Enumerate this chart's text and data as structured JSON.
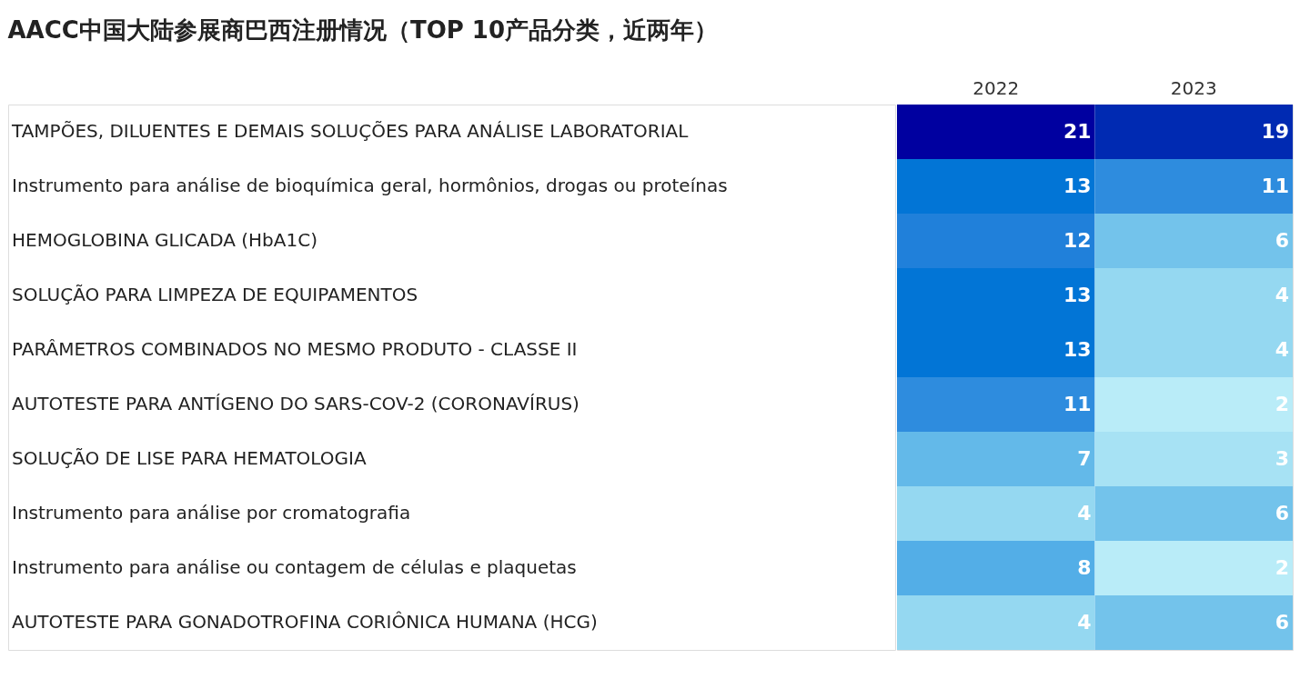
{
  "chart_data": {
    "type": "heatmap",
    "title": "AACC中国大陆参展商巴西注册情况（TOP 10产品分类，近两年）",
    "categories": [
      "2022",
      "2023"
    ],
    "y_categories": [
      "TAMPÕES, DILUENTES E DEMAIS SOLUÇÕES PARA ANÁLISE LABORATORIAL",
      "Instrumento para análise de bioquímica geral, hormônios, drogas ou proteínas",
      "HEMOGLOBINA GLICADA (HbA1C)",
      "SOLUÇÃO PARA LIMPEZA DE EQUIPAMENTOS",
      "PARÂMETROS COMBINADOS NO MESMO PRODUTO - CLASSE II",
      "AUTOTESTE PARA ANTÍGENO DO SARS-COV-2 (CORONAVÍRUS)",
      "SOLUÇÃO DE LISE PARA HEMATOLOGIA",
      "Instrumento para análise por cromatografia",
      "Instrumento para análise ou contagem de células e plaquetas",
      "AUTOTESTE PARA GONADOTROFINA CORIÔNICA HUMANA (HCG)"
    ],
    "cells": [
      [
        21,
        19
      ],
      [
        13,
        11
      ],
      [
        12,
        6
      ],
      [
        13,
        4
      ],
      [
        13,
        4
      ],
      [
        11,
        2
      ],
      [
        7,
        3
      ],
      [
        4,
        6
      ],
      [
        8,
        2
      ],
      [
        4,
        6
      ]
    ],
    "data_labels": true
  }
}
